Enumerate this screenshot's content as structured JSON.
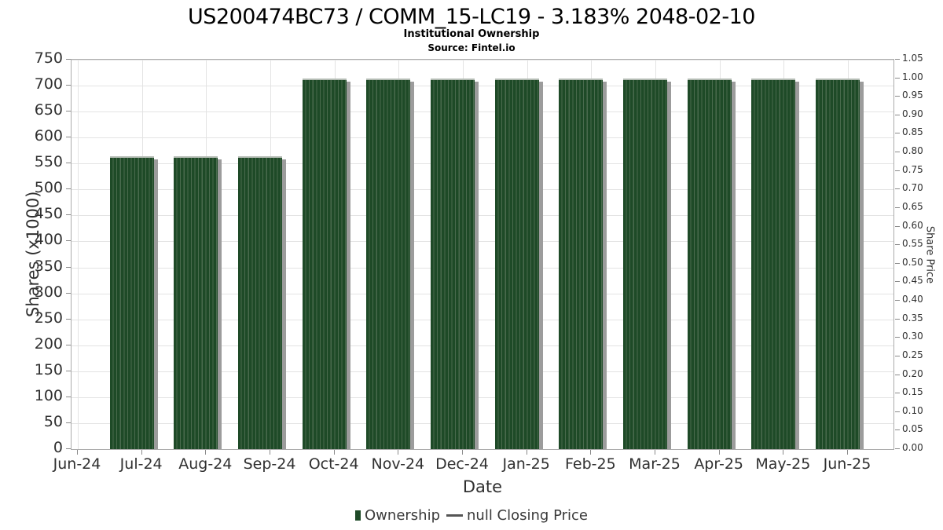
{
  "chart_data": {
    "type": "bar",
    "title": "US200474BC73 / COMM_15-LC19 - 3.183% 2048-02-10",
    "subtitle": "Institutional Ownership",
    "source": "Source: Fintel.io",
    "xlabel": "Date",
    "ylabel_left": "Shares (x1000)",
    "ylabel_right": "Share Price",
    "categories": [
      "Jun-24",
      "Jul-24",
      "Aug-24",
      "Sep-24",
      "Oct-24",
      "Nov-24",
      "Dec-24",
      "Jan-25",
      "Feb-25",
      "Mar-25",
      "Apr-25",
      "May-25",
      "Jun-25"
    ],
    "series": [
      {
        "name": "Ownership",
        "type": "bar",
        "color": "#1e4a27",
        "values": [
          null,
          564,
          564,
          564,
          714,
          714,
          714,
          714,
          714,
          714,
          714,
          714,
          714
        ]
      }
    ],
    "line_series": {
      "name": "null Closing Price",
      "color": "#555555",
      "values": []
    },
    "axis_left": {
      "min": 0,
      "max": 750,
      "step": 50
    },
    "axis_right": {
      "min": 0,
      "max": 1.05,
      "step": 0.05
    },
    "grid": true,
    "legend_position": "bottom"
  },
  "legend": {
    "items": [
      {
        "label": "Ownership",
        "swatch": "square",
        "color": "#1e4a27"
      },
      {
        "label": "null Closing Price",
        "swatch": "line",
        "color": "#555555"
      }
    ]
  },
  "colors": {
    "bar_fill": "#1e4a27",
    "bar_stripe": "#4a6b4e",
    "bar_shadow": "#9c9c9c",
    "grid": "#e3e3e3",
    "border": "#ababab",
    "text": "#303030"
  }
}
